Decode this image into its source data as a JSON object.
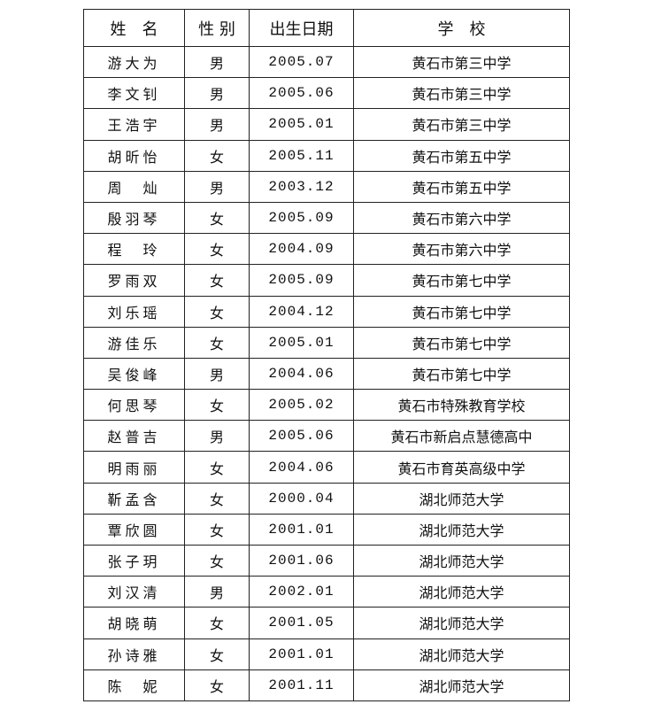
{
  "headers": [
    "姓　名",
    "性 别",
    "出生日期",
    "学　校"
  ],
  "rows": [
    [
      "游大为",
      "男",
      "2005.07",
      "黄石市第三中学"
    ],
    [
      "李文钊",
      "男",
      "2005.06",
      "黄石市第三中学"
    ],
    [
      "王浩宇",
      "男",
      "2005.01",
      "黄石市第三中学"
    ],
    [
      "胡昕怡",
      "女",
      "2005.11",
      "黄石市第五中学"
    ],
    [
      "周　灿",
      "男",
      "2003.12",
      "黄石市第五中学"
    ],
    [
      "殷羽琴",
      "女",
      "2005.09",
      "黄石市第六中学"
    ],
    [
      "程　玲",
      "女",
      "2004.09",
      "黄石市第六中学"
    ],
    [
      "罗雨双",
      "女",
      "2005.09",
      "黄石市第七中学"
    ],
    [
      "刘乐瑶",
      "女",
      "2004.12",
      "黄石市第七中学"
    ],
    [
      "游佳乐",
      "女",
      "2005.01",
      "黄石市第七中学"
    ],
    [
      "吴俊峰",
      "男",
      "2004.06",
      "黄石市第七中学"
    ],
    [
      "何思琴",
      "女",
      "2005.02",
      "黄石市特殊教育学校"
    ],
    [
      "赵普吉",
      "男",
      "2005.06",
      "黄石市新启点慧德高中"
    ],
    [
      "明雨丽",
      "女",
      "2004.06",
      "黄石市育英高级中学"
    ],
    [
      "靳孟含",
      "女",
      "2000.04",
      "湖北师范大学"
    ],
    [
      "覃欣圆",
      "女",
      "2001.01",
      "湖北师范大学"
    ],
    [
      "张子玥",
      "女",
      "2001.06",
      "湖北师范大学"
    ],
    [
      "刘汉清",
      "男",
      "2002.01",
      "湖北师范大学"
    ],
    [
      "胡晓萌",
      "女",
      "2001.05",
      "湖北师范大学"
    ],
    [
      "孙诗雅",
      "女",
      "2001.01",
      "湖北师范大学"
    ],
    [
      "陈　妮",
      "女",
      "2001.11",
      "湖北师范大学"
    ]
  ]
}
